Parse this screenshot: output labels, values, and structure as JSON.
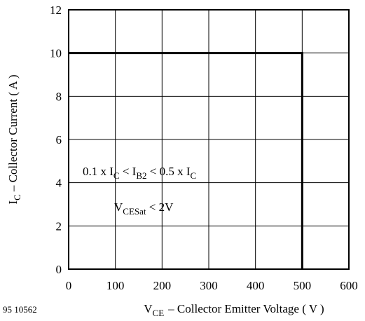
{
  "chart_data": {
    "type": "line",
    "title": "",
    "figure_code": "95 10562",
    "x_axis": {
      "label_main": "V",
      "label_sub": "CE",
      "label_rest": "– Collector Emitter Voltage ( V )",
      "range": [
        0,
        600
      ],
      "ticks": [
        0,
        100,
        200,
        300,
        400,
        500,
        600
      ]
    },
    "y_axis": {
      "label_main": "I",
      "label_sub": "C",
      "label_rest": "– Collector Current ( A )",
      "range": [
        0,
        12
      ],
      "ticks": [
        0,
        2,
        4,
        6,
        8,
        10,
        12
      ]
    },
    "grid": true,
    "series": [
      {
        "x": [
          0,
          500,
          500
        ],
        "y": [
          10,
          10,
          0
        ]
      }
    ],
    "annotations": [
      {
        "parts": [
          {
            "t": "0.1 x I",
            "sub": false
          },
          {
            "t": "C",
            "sub": true
          },
          {
            "t": " < I",
            "sub": false
          },
          {
            "t": "B2",
            "sub": true
          },
          {
            "t": " < 0.5 x I",
            "sub": false
          },
          {
            "t": "C",
            "sub": true
          }
        ]
      },
      {
        "parts": [
          {
            "t": "V",
            "sub": false
          },
          {
            "t": "CESat",
            "sub": true
          },
          {
            "t": " < 2V",
            "sub": false
          }
        ]
      }
    ]
  }
}
